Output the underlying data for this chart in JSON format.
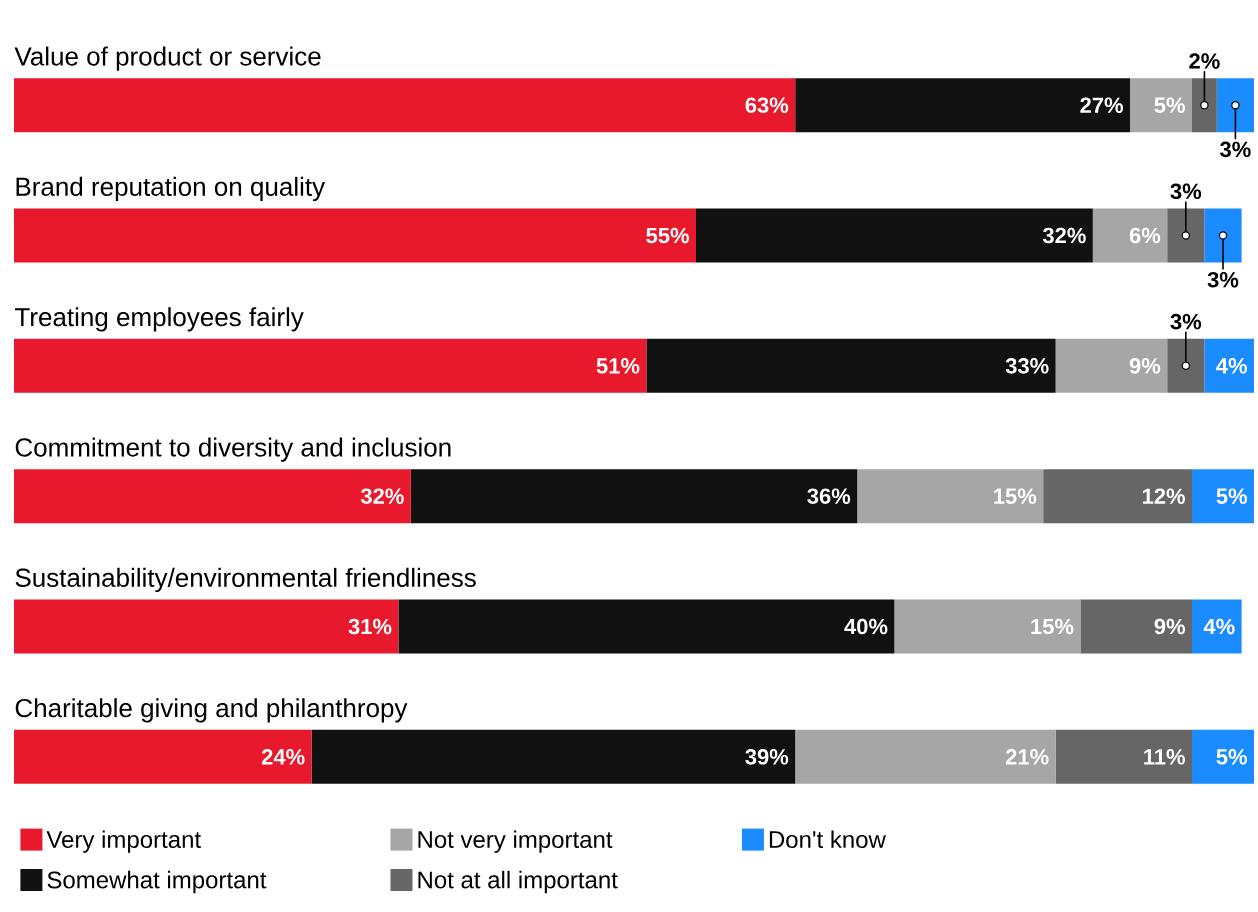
{
  "chart_data": {
    "type": "bar",
    "orientation": "horizontal",
    "stacked": true,
    "xlim": [
      0,
      100
    ],
    "legend": "bottom",
    "categories": [
      "Value of product or service",
      "Brand reputation on quality",
      "Treating employees fairly",
      "Commitment to diversity and inclusion",
      "Sustainability/environmental friendliness",
      "Charitable giving and philanthropy"
    ],
    "series": [
      {
        "name": "Very important",
        "color": "#e8192c",
        "values": [
          63,
          55,
          51,
          32,
          31,
          24
        ],
        "value_labels": [
          "63%",
          "55%",
          "51%",
          "32%",
          "31%",
          "24%"
        ]
      },
      {
        "name": "Somewhat important",
        "color": "#111111",
        "values": [
          27,
          32,
          33,
          36,
          40,
          39
        ],
        "value_labels": [
          "27%",
          "32%",
          "33%",
          "36%",
          "40%",
          "39%"
        ]
      },
      {
        "name": "Not very important",
        "color": "#a6a6a6",
        "values": [
          5,
          6,
          9,
          15,
          15,
          21
        ],
        "value_labels": [
          "5%",
          "6%",
          "9%",
          "15%",
          "15%",
          "21%"
        ]
      },
      {
        "name": "Not at all important",
        "color": "#666666",
        "values": [
          2,
          3,
          3,
          12,
          9,
          11
        ],
        "value_labels": [
          "2%",
          "3%",
          "3%",
          "12%",
          "9%",
          "11%"
        ]
      },
      {
        "name": "Don't know",
        "color": "#1a8cff",
        "values": [
          3,
          3,
          4,
          5,
          4,
          5
        ],
        "value_labels": [
          "3%",
          "3%",
          "4%",
          "5%",
          "4%",
          "5%"
        ]
      }
    ]
  }
}
